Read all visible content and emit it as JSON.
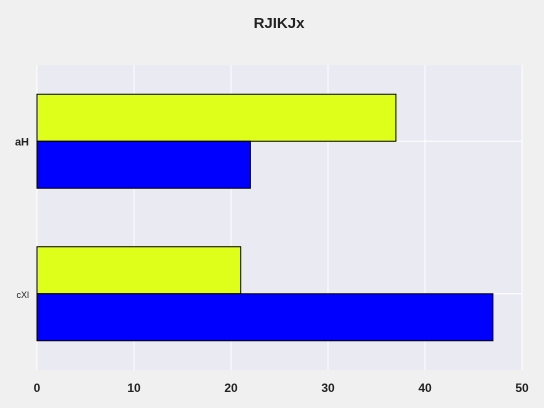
{
  "chart_data": {
    "type": "bar",
    "orientation": "horizontal",
    "title": "RJIKJx",
    "xlabel": "",
    "ylabel": "",
    "categories": [
      "aH",
      "cXl"
    ],
    "series": [
      {
        "values": [
          37,
          21
        ],
        "color": "#ddff1a"
      },
      {
        "values": [
          22,
          47
        ],
        "color": "#0000ff"
      }
    ],
    "xlim": [
      0,
      50
    ],
    "xticks": [
      0,
      10,
      20,
      30,
      40,
      50
    ],
    "grid": true,
    "legend": "none",
    "colors": {
      "background": "#f0f0f0",
      "plot_area": "#eaeaf2",
      "grid": "#ffffff",
      "bar_edge": "#000000"
    }
  }
}
